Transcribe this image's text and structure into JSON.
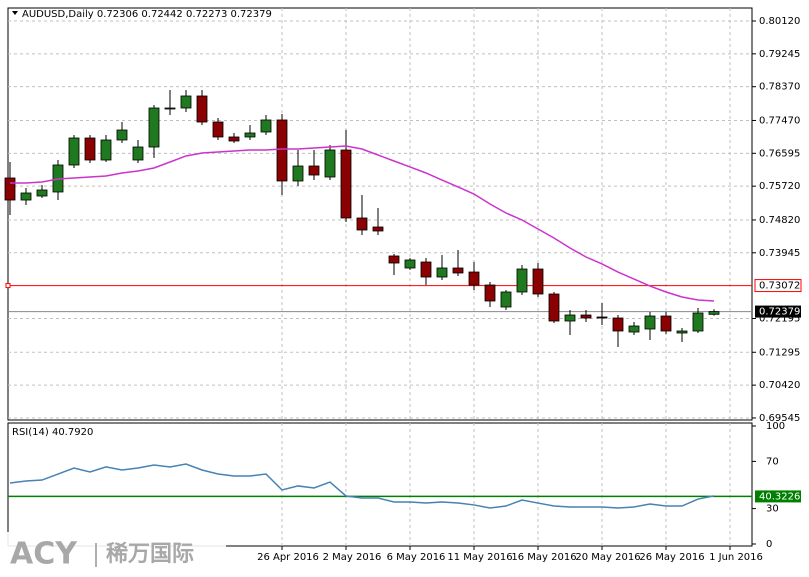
{
  "chart_data": {
    "type": "candlestick",
    "title": "AUDUSD,Daily  0.72306 0.72442 0.72273 0.72379",
    "ylim": [
      0.69491,
      0.80466
    ],
    "yticks": [
      {
        "value": 0.8012,
        "label": "0.80120"
      },
      0.79245,
      {
        "value": 0.7837,
        "label": "0.78370"
      },
      {
        "value": 0.7747,
        "label": "0.77470"
      },
      0.76595,
      {
        "value": 0.7572,
        "label": "0.75720"
      },
      {
        "value": 0.7482,
        "label": "0.74820"
      },
      0.73945,
      0.72195,
      0.71295,
      {
        "value": 0.7042,
        "label": "0.70420"
      },
      0.69545
    ],
    "xticks": [
      {
        "value": 17,
        "label": "26 Apr 2016"
      },
      {
        "value": 21,
        "label": "2 May 2016"
      },
      {
        "value": 25,
        "label": "6 May 2016"
      },
      {
        "value": 29,
        "label": "11 May 2016"
      },
      {
        "value": 33,
        "label": "16 May 2016"
      },
      {
        "value": 37,
        "label": "20 May 2016"
      },
      {
        "value": 41,
        "label": "26 May 2016"
      },
      {
        "value": 45,
        "label": "1 Jun 2016"
      }
    ],
    "grid": true,
    "up_color": "#1f7a1f",
    "down_color": "#8b0000",
    "open": [
      0.75938,
      0.75351,
      0.75458,
      0.75565,
      0.76284,
      0.77003,
      0.76417,
      0.7695,
      0.76417,
      0.76763,
      0.77776,
      0.77802,
      0.78122,
      0.77429,
      0.7703,
      0.7703,
      0.77163,
      0.77483,
      0.75858,
      0.76257,
      0.75964,
      0.76683,
      0.74872,
      0.74632,
      0.7386,
      0.7354,
      0.737,
      0.733,
      0.7354,
      0.73433,
      0.73087,
      0.72501,
      0.72901,
      0.73513,
      0.72847,
      0.72128,
      0.72288,
      0.72235,
      0.72208,
      0.71835,
      0.71915,
      0.72261,
      0.71808,
      0.71862,
      0.72306
    ],
    "high": [
      0.76364,
      0.75671,
      0.75751,
      0.76417,
      0.77083,
      0.77083,
      0.77083,
      0.77429,
      0.7695,
      0.77882,
      0.78282,
      0.78282,
      0.78282,
      0.77536,
      0.77136,
      0.77349,
      0.77616,
      0.77643,
      0.76683,
      0.76683,
      0.76817,
      0.77216,
      0.75485,
      0.75138,
      0.73913,
      0.73806,
      0.73806,
      0.73886,
      0.74019,
      0.737,
      0.73167,
      0.72954,
      0.7362,
      0.73673,
      0.72901,
      0.72421,
      0.72421,
      0.72608,
      0.72288,
      0.72101,
      0.72368,
      0.72368,
      0.71942,
      0.72474,
      0.72442
    ],
    "low": [
      0.74952,
      0.75218,
      0.75405,
      0.75351,
      0.76204,
      0.76337,
      0.76364,
      0.7687,
      0.76337,
      0.7647,
      0.77616,
      0.77696,
      0.77349,
      0.7695,
      0.7687,
      0.7695,
      0.77083,
      0.75485,
      0.75724,
      0.75884,
      0.75884,
      0.74765,
      0.74419,
      0.74419,
      0.73353,
      0.73487,
      0.73087,
      0.7322,
      0.73327,
      0.72954,
      0.72501,
      0.72421,
      0.72821,
      0.72767,
      0.72075,
      0.71755,
      0.72101,
      0.72021,
      0.71435,
      0.71755,
      0.71622,
      0.71782,
      0.71569,
      0.71808,
      0.72273
    ],
    "close": [
      0.75351,
      0.75538,
      0.75618,
      0.76284,
      0.77003,
      0.76417,
      0.7695,
      0.77216,
      0.76763,
      0.77802,
      0.77802,
      0.78122,
      0.77429,
      0.7703,
      0.76923,
      0.77136,
      0.77483,
      0.75858,
      0.76257,
      0.76017,
      0.76683,
      0.74872,
      0.74552,
      0.74526,
      0.73673,
      0.73753,
      0.733,
      0.7354,
      0.73407,
      0.73087,
      0.72661,
      0.72901,
      0.73513,
      0.72847,
      0.72128,
      0.72288,
      0.72208,
      0.72208,
      0.71862,
      0.71995,
      0.72261,
      0.71862,
      0.71862,
      0.72341,
      0.72379
    ],
    "ma": {
      "color": "#cc33cc",
      "values": [
        0.75804,
        0.75804,
        0.75831,
        0.75911,
        0.75938,
        0.75964,
        0.75991,
        0.76071,
        0.76124,
        0.76204,
        0.76364,
        0.76524,
        0.76604,
        0.7663,
        0.76657,
        0.76683,
        0.76683,
        0.7671,
        0.7671,
        0.76737,
        0.76763,
        0.7679,
        0.7671,
        0.7655,
        0.7639,
        0.76231,
        0.76071,
        0.75884,
        0.75698,
        0.75511,
        0.75245,
        0.75005,
        0.74819,
        0.74579,
        0.74339,
        0.74073,
        0.73833,
        0.73647,
        0.73433,
        0.73247,
        0.7306,
        0.72901,
        0.72767,
        0.72687,
        0.72661
      ]
    },
    "levels": [
      {
        "value": 0.73072,
        "label": "0.73072",
        "color": "#ff0000"
      }
    ],
    "last_price": {
      "value": 0.72379,
      "label": "0.72379"
    },
    "rsi": {
      "title": "RSI(14) 40.7920",
      "ylim": [
        0,
        100
      ],
      "yticks": [
        100,
        70,
        30,
        0
      ],
      "color": "#4682b4",
      "values": [
        51.7,
        53.4,
        54.2,
        59.3,
        64.4,
        61.0,
        65.3,
        62.7,
        64.4,
        66.9,
        65.3,
        67.8,
        62.7,
        59.3,
        57.6,
        57.6,
        59.3,
        45.8,
        49.2,
        47.5,
        52.5,
        40.7,
        39.0,
        39.0,
        35.6,
        35.6,
        34.7,
        35.6,
        34.7,
        33.1,
        30.5,
        32.2,
        37.3,
        34.7,
        32.2,
        31.4,
        31.4,
        31.4,
        30.5,
        31.4,
        33.9,
        32.2,
        32.2,
        38.1,
        40.792
      ],
      "level": {
        "value": 40.3226,
        "label": "40.3226",
        "color": "#008000"
      }
    }
  },
  "watermark": {
    "brand": "ACY",
    "name": "稀万国际"
  }
}
